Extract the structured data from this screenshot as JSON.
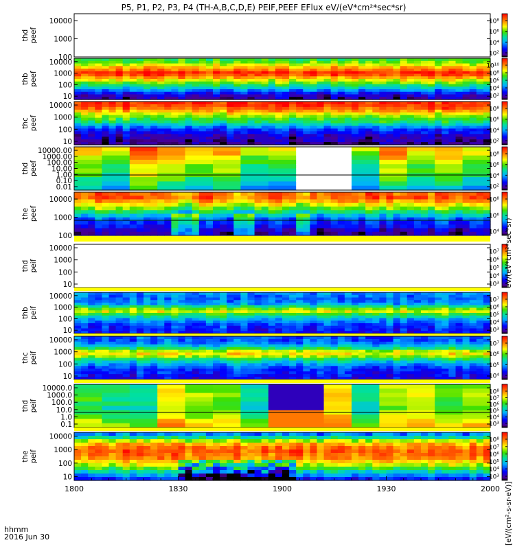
{
  "title": "P5, P1, P2, P3, P4 (TH-A,B,C,D,E) PEIF,PEEF EFlux eV/(eV*cm²*sec*sr)",
  "x_label": "hhmm",
  "date_label": "2016 Jun 30",
  "colorbar_unit_labels": [
    "[eV/(cm²-s-sr-eV)]",
    "eV/(eV*cm²*sec*sr)"
  ],
  "chart_data": {
    "type": "heatmap",
    "x_ticks": [
      "1800",
      "1830",
      "1900",
      "1930",
      "2000"
    ],
    "x_tick_values": [
      0,
      30,
      60,
      90,
      120
    ],
    "x_range_minutes": [
      0,
      120
    ],
    "panels": [
      {
        "label": "thd peef",
        "yticks": [
          "10000",
          "1000",
          "100"
        ],
        "cbar": [
          "10⁸",
          "10⁶",
          "10⁴",
          "10²"
        ],
        "missing": true
      },
      {
        "label": "thb peef",
        "yticks": [
          "10000",
          "1000",
          "100",
          "10"
        ],
        "cbar": [
          "10¹⁰",
          "10⁸",
          "10⁶",
          "10⁴",
          "10²"
        ],
        "energy_profile": [
          0.55,
          0.6,
          0.68,
          0.78,
          0.85,
          0.95,
          0.9,
          0.8,
          0.7,
          0.6,
          0.5,
          0.4,
          0.3,
          0.2,
          0.12,
          0.08
        ]
      },
      {
        "label": "thc peef",
        "yticks": [
          "10000",
          "1000",
          "100",
          "10"
        ],
        "cbar": [
          "10⁸",
          "10⁶",
          "10⁴",
          "10²"
        ],
        "energy_profile": [
          0.95,
          0.92,
          0.88,
          0.8,
          0.7,
          0.62,
          0.55,
          0.5,
          0.4,
          0.3,
          0.22,
          0.18,
          0.12,
          0.1,
          0.08,
          0.05
        ]
      },
      {
        "label": "thd peef",
        "yticks": [
          "10000.00",
          "1000.00",
          "100.00",
          "10.00",
          "1.00",
          "0.10",
          "0.01"
        ],
        "cbar": [
          "10⁸",
          "10⁶",
          "10⁴",
          "10²"
        ],
        "energy_profile": [
          0.78,
          0.75,
          0.7,
          0.65,
          0.6,
          0.58,
          0.55,
          0.5,
          0.45,
          0.4
        ]
      },
      {
        "label": "the peef",
        "yticks": [
          "10000",
          "1000",
          "100"
        ],
        "cbar": [
          "10⁸",
          "10⁶",
          "10⁴"
        ],
        "energy_profile": [
          0.88,
          0.9,
          0.82,
          0.72,
          0.62,
          0.5,
          0.38,
          0.28,
          0.22,
          0.18,
          0.12,
          0.08
        ]
      },
      {
        "label": "thd peif",
        "yticks": [
          "10000",
          "1000",
          "100",
          "10"
        ],
        "cbar": [
          "10⁷",
          "10⁶",
          "10⁵",
          "10⁴",
          "10³"
        ],
        "missing": true
      },
      {
        "label": "thb peif",
        "yticks": [
          "10000",
          "1000",
          "100",
          "10"
        ],
        "cbar": [
          "10⁷",
          "10⁶",
          "10⁵",
          "10⁴",
          "10³"
        ],
        "energy_profile": [
          0.32,
          0.3,
          0.28,
          0.3,
          0.34,
          0.5,
          0.62,
          0.68,
          0.55,
          0.45,
          0.36,
          0.3,
          0.25,
          0.22,
          0.2,
          0.18
        ]
      },
      {
        "label": "thc peif",
        "yticks": [
          "10000",
          "1000",
          "100",
          "10"
        ],
        "cbar": [
          "10⁷",
          "10⁶",
          "10⁵",
          "10⁴"
        ],
        "energy_profile": [
          0.26,
          0.26,
          0.3,
          0.38,
          0.5,
          0.66,
          0.72,
          0.64,
          0.5,
          0.4,
          0.32,
          0.26,
          0.22,
          0.2,
          0.18,
          0.16
        ]
      },
      {
        "label": "thd peif",
        "yticks": [
          "10000.0",
          "1000.0",
          "100.0",
          "10.0",
          "1.0",
          "0.1"
        ],
        "cbar": [
          "10⁸",
          "10⁷",
          "10⁶",
          "10⁵",
          "10⁴",
          "10³"
        ],
        "energy_profile": [
          0.58,
          0.6,
          0.62,
          0.6,
          0.58,
          0.55,
          0.58,
          0.62,
          0.68,
          0.72
        ]
      },
      {
        "label": "the peif",
        "yticks": [
          "10000",
          "1000",
          "100",
          "10"
        ],
        "cbar": [
          "10⁸",
          "10⁷",
          "10⁶",
          "10⁵",
          "10⁴",
          "10³"
        ],
        "energy_profile": [
          0.3,
          0.45,
          0.65,
          0.78,
          0.85,
          0.88,
          0.86,
          0.82,
          0.75,
          0.66,
          0.55,
          0.42,
          0.3,
          0.2
        ]
      }
    ]
  }
}
